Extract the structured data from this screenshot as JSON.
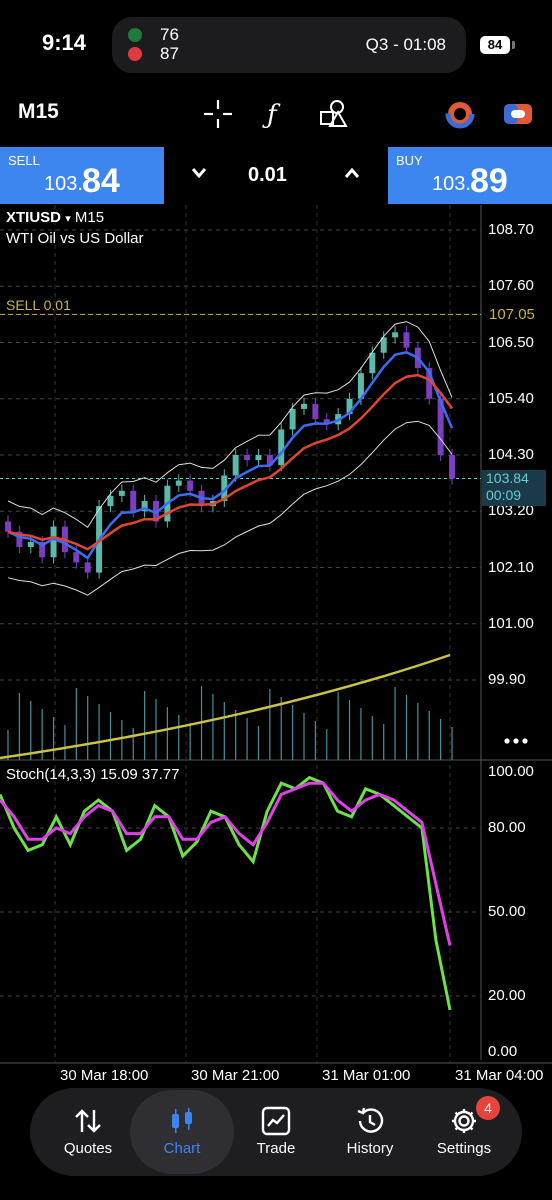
{
  "status_bar": {
    "time": "9:14",
    "battery": "84",
    "live_activity": {
      "team1_score": "76",
      "team2_score": "87",
      "game_clock": "Q3 - 01:08"
    }
  },
  "toolbar": {
    "timeframe": "M15",
    "tools": [
      "crosshair-icon",
      "function-icon",
      "objects-icon",
      "indicator-icon",
      "chart-settings-icon"
    ]
  },
  "trade_bar": {
    "sell_label": "SELL",
    "sell_price_prefix": "103.",
    "sell_price_big": "84",
    "lot": "0.01",
    "buy_label": "BUY",
    "buy_price_prefix": "103.",
    "buy_price_big": "89",
    "accent": "#3d86f0"
  },
  "chart": {
    "symbol": "XTIUSD",
    "symbol_arrow": "▾",
    "timeframe": "M15",
    "description": "WTI Oil vs US Dollar",
    "sell_level_label": "SELL 0.01",
    "sell_level_value": "107.05",
    "current_price": "103.84",
    "countdown": "00:09",
    "price_axis": [
      "108.70",
      "107.60",
      "106.50",
      "105.40",
      "104.30",
      "103.20",
      "102.10",
      "101.00",
      "99.90"
    ],
    "stoch_title": "Stoch(14,3,3) 15.09 37.77",
    "stoch_axis": [
      "100.00",
      "80.00",
      "50.00",
      "20.00",
      "0.00"
    ],
    "time_axis": [
      "30 Mar 18:00",
      "30 Mar 21:00",
      "31 Mar 01:00",
      "31 Mar 04:00"
    ],
    "colors": {
      "bull": "#5cb8a8",
      "bear": "#7a3fbf",
      "ema_fast": "#3b6cf5",
      "ema_slow": "#e0452f",
      "ma_long": "#c8c24a",
      "stoch_k": "#6ee04a",
      "stoch_d": "#e040e8"
    }
  },
  "chart_data": {
    "type": "line",
    "title": "XTIUSD, M15",
    "ylim": [
      99.9,
      108.7
    ],
    "close_prices": [
      102.8,
      102.5,
      102.6,
      102.3,
      102.9,
      102.4,
      102.2,
      102.0,
      103.3,
      103.5,
      103.6,
      103.2,
      103.4,
      103.0,
      103.7,
      103.8,
      103.6,
      103.3,
      103.4,
      103.9,
      104.3,
      104.2,
      104.3,
      104.1,
      104.8,
      105.2,
      105.3,
      105.0,
      104.9,
      105.1,
      105.4,
      105.9,
      106.3,
      106.6,
      106.7,
      106.4,
      106.0,
      105.4,
      104.3,
      103.84
    ],
    "series": [
      {
        "name": "Stoch %K",
        "values": [
          92,
          80,
          72,
          74,
          84,
          74,
          86,
          90,
          86,
          72,
          76,
          88,
          84,
          70,
          75,
          86,
          84,
          74,
          68,
          86,
          96,
          94,
          98,
          96,
          86,
          84,
          94,
          92,
          88,
          84,
          80,
          40,
          15
        ]
      },
      {
        "name": "Stoch %D",
        "values": [
          90,
          84,
          76,
          76,
          80,
          78,
          84,
          88,
          86,
          78,
          78,
          84,
          84,
          76,
          76,
          82,
          84,
          78,
          74,
          82,
          92,
          94,
          96,
          96,
          90,
          86,
          90,
          92,
          90,
          86,
          82,
          60,
          38
        ]
      }
    ]
  },
  "nav": {
    "tabs": [
      {
        "label": "Quotes",
        "icon": "quotes-arrows-icon"
      },
      {
        "label": "Chart",
        "icon": "chart-candles-icon"
      },
      {
        "label": "Trade",
        "icon": "trade-chart-icon"
      },
      {
        "label": "History",
        "icon": "history-clock-icon"
      },
      {
        "label": "Settings",
        "icon": "settings-gear-icon"
      }
    ],
    "settings_badge": "4"
  }
}
